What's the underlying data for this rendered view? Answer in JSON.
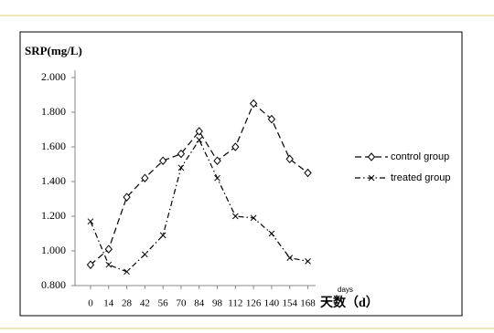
{
  "chart_data": {
    "type": "line",
    "y_label": "SRP(mg/L)",
    "x_label": "天数（d）",
    "x_unit": "days",
    "x": [
      0,
      14,
      28,
      42,
      56,
      70,
      84,
      98,
      112,
      126,
      140,
      154,
      168
    ],
    "xlim": [
      -12,
      174
    ],
    "ylim": [
      0.8,
      2.0
    ],
    "yticks": [
      {
        "value": 0.8,
        "label": "0.800"
      },
      {
        "value": 1.0,
        "label": "1.000"
      },
      {
        "value": 1.2,
        "label": "1.200"
      },
      {
        "value": 1.4,
        "label": "1.400"
      },
      {
        "value": 1.6,
        "label": "1.600"
      },
      {
        "value": 1.8,
        "label": "1.800"
      },
      {
        "value": 2.0,
        "label": "2.000"
      }
    ],
    "series": [
      {
        "name": "control group",
        "color": "#000000",
        "marker": "diamond",
        "dash": "7,4",
        "values": [
          0.92,
          1.01,
          1.31,
          1.42,
          1.52,
          1.56,
          1.69,
          1.52,
          1.6,
          1.85,
          1.76,
          1.53,
          1.45
        ]
      },
      {
        "name": "treated group",
        "color": "#000000",
        "marker": "x",
        "dash": "6,3,1.5,3",
        "values": [
          1.17,
          0.92,
          0.88,
          0.98,
          1.09,
          1.48,
          1.64,
          1.42,
          1.2,
          1.19,
          1.1,
          0.96,
          0.94
        ]
      }
    ]
  }
}
